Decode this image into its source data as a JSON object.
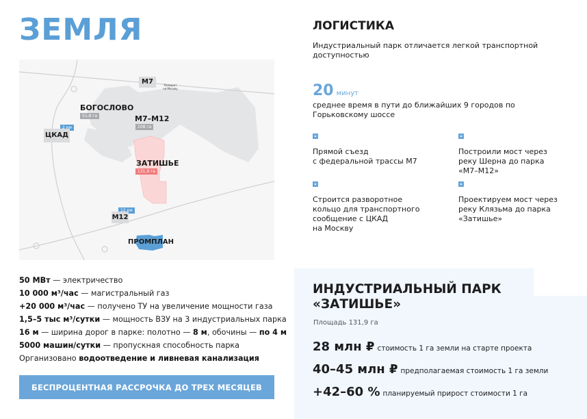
{
  "land": {
    "title": "ЗЕМЛЯ"
  },
  "map": {
    "labels": {
      "m7": "М7",
      "bogoslovo": "БОГОСЛОВО",
      "bogoslovo_area": "51,8 га",
      "m7m12": "М7–М12",
      "m7m12_area": "108 га",
      "ckad": "ЦКАД",
      "ckad_dist": "2 км",
      "zatishye": "ЗАТИШЬЕ",
      "zatishye_area": "131,9 га",
      "m12": "М12",
      "m12_dist": "12 км",
      "promplan": "ПРОМПЛАН",
      "turn": "Разворот на Москву"
    },
    "colors": {
      "zatishye": "#f27a7a",
      "promplan": "#5b9fd6",
      "parcels": "#e4e5e7",
      "roads": "#cfd0d3"
    }
  },
  "facts": [
    {
      "bold": "50 МВт",
      "text": " — электричество"
    },
    {
      "bold": "10 000 м³/час",
      "text": " — магистральный газ"
    },
    {
      "bold": "+20 000 м³/час",
      "text": " — получено ТУ на увеличение мощности газа"
    },
    {
      "bold": "1,5–5 тыс м³/сутки",
      "text": " — мощность ВЗУ на 3 индустриальных парка"
    },
    {
      "bold": "16 м",
      "text": " — ширина дорог в парке: полотно — ",
      "bold2": "8 м",
      "text2": ", обочины — ",
      "bold3": "по 4 м"
    },
    {
      "bold": "5000 машин/сутки",
      "text": " — пропускная способность парка"
    },
    {
      "pre": "Организовано ",
      "bold": "водоотведение и ливневая канализация"
    }
  ],
  "cta": {
    "label": "БЕСПРОЦЕНТНАЯ РАССРОЧКА ДО ТРЕХ МЕСЯЦЕВ"
  },
  "logistics": {
    "title": "ЛОГИСТИКА",
    "desc": "Индустриальный парк отличается легкой транспортной доступностью",
    "stat_value": "20",
    "stat_unit": "минут",
    "stat_desc": "среднее время в пути до ближайших 9 городов по Горьковскому шоссе",
    "features": [
      "Прямой съезд\nс федеральной трассы М7",
      "Построили мост через\nреку Шерна до парка\n«М7–М12»",
      "Строится разворотное\nкольцо для транспортного\nсообщение с ЦКАД\nна Москву",
      "Проектируем мост через\nреку Клязьма до парка\n«Затишье»"
    ]
  },
  "park": {
    "title": "ИНДУСТРИАЛЬНЫЙ ПАРК «ЗАТИШЬЕ»",
    "area": "Площадь 131,9 га",
    "prices": [
      {
        "value": "28 млн ₽",
        "desc": "стоимость 1 га земли на старте проекта"
      },
      {
        "value": "40–45 млн ₽",
        "desc": "предполагаемая стоимость 1 га земли"
      },
      {
        "value": "+42–60 %",
        "desc": "планируемый прирост стоимости 1 га"
      }
    ]
  },
  "accent": "#6aa6da"
}
